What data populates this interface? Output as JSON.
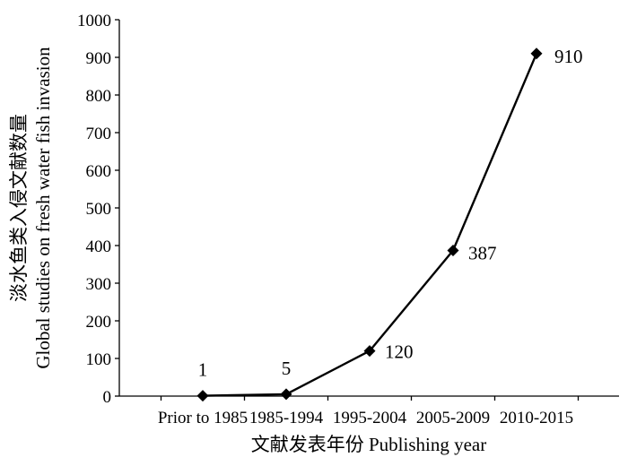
{
  "chart_data": {
    "type": "line",
    "title": "",
    "xlabel": "文献发表年份 Publishing year",
    "ylabel_line1": "淡水鱼类入侵文献数量",
    "ylabel_line2": "Global studies on fresh water fish invasion",
    "categories": [
      "Prior to 1985",
      "1985-1994",
      "1995-2004",
      "2005-2009",
      "2010-2015"
    ],
    "series": [
      {
        "values": [
          1,
          5,
          120,
          387,
          910
        ]
      }
    ],
    "data_labels": [
      "1",
      "5",
      "120",
      "387",
      "910"
    ],
    "ylim": [
      0,
      1000
    ],
    "yticks": [
      0,
      100,
      200,
      300,
      400,
      500,
      600,
      700,
      800,
      900,
      1000
    ],
    "grid": false,
    "legend": "none",
    "marker": "diamond",
    "line_color": "#000000"
  }
}
